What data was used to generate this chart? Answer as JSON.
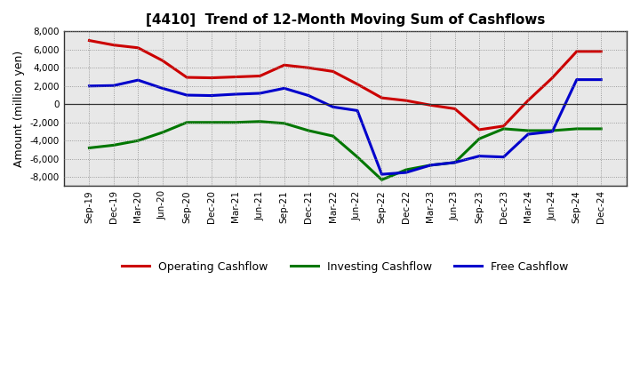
{
  "title": "[4410]  Trend of 12-Month Moving Sum of Cashflows",
  "ylabel": "Amount (million yen)",
  "ylim": [
    -9000,
    8000
  ],
  "yticks": [
    -8000,
    -6000,
    -4000,
    -2000,
    0,
    2000,
    4000,
    6000,
    8000
  ],
  "background_color": "#ffffff",
  "plot_bg_color": "#e8e8e8",
  "grid_color": "#888888",
  "x_labels": [
    "Sep-19",
    "Dec-19",
    "Mar-20",
    "Jun-20",
    "Sep-20",
    "Dec-20",
    "Mar-21",
    "Jun-21",
    "Sep-21",
    "Dec-21",
    "Mar-22",
    "Jun-22",
    "Sep-22",
    "Dec-22",
    "Mar-23",
    "Jun-23",
    "Sep-23",
    "Dec-23",
    "Mar-24",
    "Jun-24",
    "Sep-24",
    "Dec-24"
  ],
  "operating": [
    7000,
    6500,
    6200,
    4800,
    2950,
    2900,
    3000,
    3100,
    4300,
    4000,
    3600,
    2200,
    700,
    400,
    -100,
    -500,
    -2800,
    -2400,
    400,
    2900,
    5800,
    5800
  ],
  "investing": [
    -4800,
    -4500,
    -4000,
    -3100,
    -2000,
    -2000,
    -2000,
    -1900,
    -2100,
    -2900,
    -3500,
    -5800,
    -8300,
    -7200,
    -6700,
    -6400,
    -3800,
    -2700,
    -2900,
    -2900,
    -2700,
    -2700
  ],
  "free": [
    2000,
    2050,
    2650,
    1750,
    1000,
    950,
    1100,
    1200,
    1750,
    950,
    -300,
    -700,
    -7700,
    -7500,
    -6700,
    -6400,
    -5700,
    -5800,
    -3300,
    -3000,
    2700,
    2700
  ],
  "operating_color": "#cc0000",
  "investing_color": "#007700",
  "free_color": "#0000cc",
  "line_width": 2.2
}
